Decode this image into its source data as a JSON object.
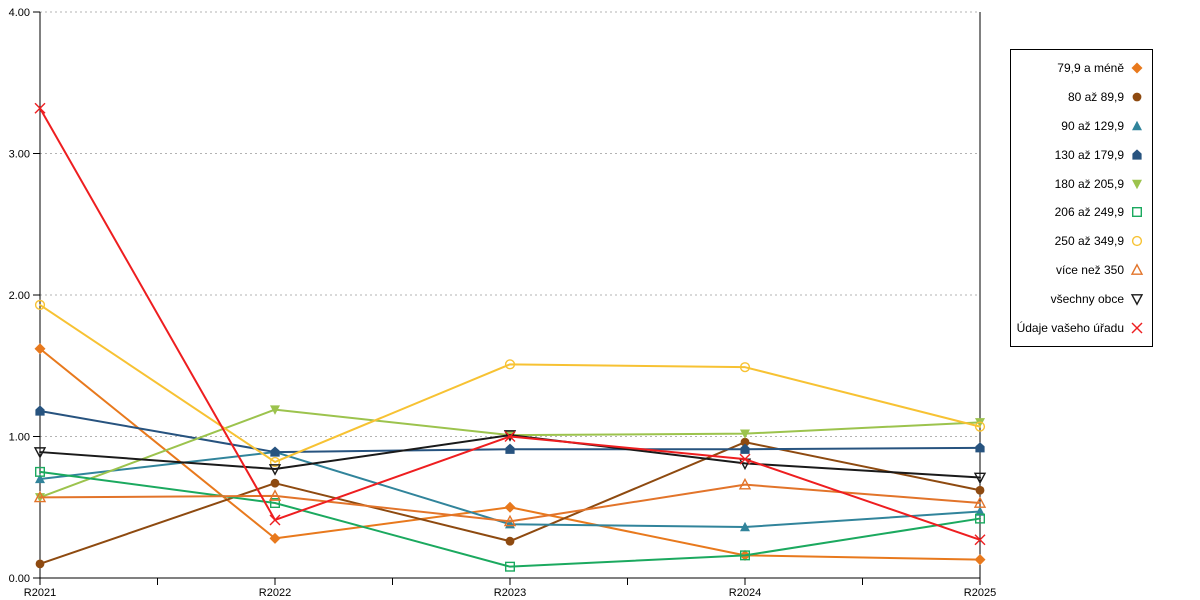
{
  "chart_data": {
    "type": "line",
    "title": "",
    "xlabel": "",
    "ylabel": "",
    "x": [
      "R2021",
      "R2022",
      "R2023",
      "R2024",
      "R2025"
    ],
    "ylim": [
      0,
      4
    ],
    "ytick_labels": [
      "0.00",
      "1.00",
      "2.00",
      "3.00",
      "4.00"
    ],
    "grid": "horizontal-dotted",
    "gridline_color": "#b3b3b3",
    "axis_color": "#000000",
    "legend_position": "right",
    "series": [
      {
        "name": "79,9 a méně",
        "marker": "diamond",
        "fill": "solid",
        "color": "#E8791D",
        "values": [
          1.62,
          0.28,
          0.5,
          0.16,
          0.13
        ]
      },
      {
        "name": "80 až 89,9",
        "marker": "circle",
        "fill": "solid",
        "color": "#8E4A10",
        "values": [
          0.1,
          0.67,
          0.26,
          0.96,
          0.62
        ]
      },
      {
        "name": "90 až 129,9",
        "marker": "triangle-up",
        "fill": "solid",
        "color": "#31849B",
        "values": [
          0.7,
          0.89,
          0.38,
          0.36,
          0.47
        ]
      },
      {
        "name": "130 až 179,9",
        "marker": "pentagon",
        "fill": "solid",
        "color": "#27537F",
        "values": [
          1.18,
          0.89,
          0.91,
          0.91,
          0.92
        ]
      },
      {
        "name": "180 až 205,9",
        "marker": "triangle-down",
        "fill": "solid",
        "color": "#9CC34D",
        "values": [
          0.57,
          1.19,
          1.01,
          1.02,
          1.1
        ]
      },
      {
        "name": "206 až 249,9",
        "marker": "square",
        "fill": "open",
        "color": "#1BA95F",
        "values": [
          0.75,
          0.53,
          0.08,
          0.16,
          0.42
        ]
      },
      {
        "name": "250 až 349,9",
        "marker": "circle",
        "fill": "open",
        "color": "#F7C233",
        "values": [
          1.93,
          0.82,
          1.51,
          1.49,
          1.07
        ]
      },
      {
        "name": "více než 350",
        "marker": "triangle-up",
        "fill": "open",
        "color": "#E2742A",
        "values": [
          0.57,
          0.58,
          0.4,
          0.66,
          0.53
        ]
      },
      {
        "name": "všechny obce",
        "marker": "triangle-down",
        "fill": "open",
        "color": "#1a1a1a",
        "values": [
          0.89,
          0.77,
          1.01,
          0.81,
          0.71
        ]
      },
      {
        "name": "Údaje vašeho úřadu",
        "marker": "x",
        "fill": "open",
        "color": "#EE1E20",
        "values": [
          3.32,
          0.41,
          1.0,
          0.84,
          0.27
        ]
      }
    ]
  }
}
